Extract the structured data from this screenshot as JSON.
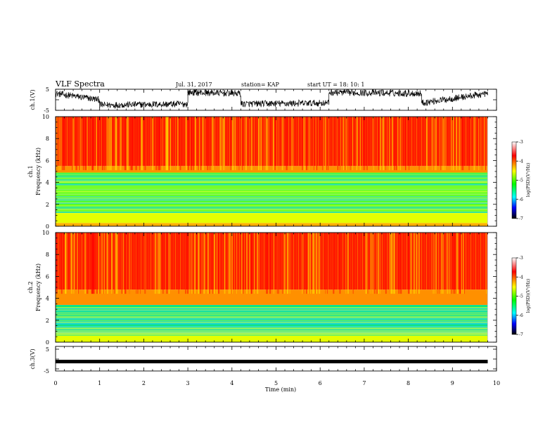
{
  "header": {
    "title": "VLF Spectra",
    "date": "Jul. 31, 2017",
    "station": "station= KAP",
    "start": "start UT =   18: 10: 1"
  },
  "panels": {
    "ch1_wave_label": "ch.1(V)",
    "ch1_spec_label": "ch.1",
    "ch2_spec_label": "ch.2",
    "freq_label": "Frequency (kHz)",
    "ch3_wave_label": "ch.3(V)"
  },
  "colorbar": {
    "label": "log(PSD)(V²/Hz)",
    "ticks": [
      "-3",
      "-4",
      "-5",
      "-6",
      "-7"
    ],
    "colors": [
      "#ffffff",
      "#ff0000",
      "#ffff00",
      "#00ff00",
      "#00ffff",
      "#0000ff",
      "#000000"
    ]
  },
  "chart_data": [
    {
      "type": "line",
      "name": "ch1-waveform",
      "ylabel": "ch.1(V)",
      "ylim": [
        -5,
        5
      ],
      "yticks": [
        "5",
        "-5"
      ],
      "xlim": [
        0,
        10
      ],
      "description_level": "fluctuating between approx -2 and 4 V",
      "segments": [
        {
          "x": [
            0.0,
            1.0
          ],
          "y": [
            3.0,
            0.0
          ]
        },
        {
          "x": [
            1.0,
            3.0
          ],
          "y": [
            -2.5,
            -2.0
          ]
        },
        {
          "x": [
            3.0,
            4.2
          ],
          "y": [
            3.5,
            3.0
          ]
        },
        {
          "x": [
            4.2,
            6.2
          ],
          "y": [
            -2.0,
            -1.5
          ]
        },
        {
          "x": [
            6.2,
            8.3
          ],
          "y": [
            3.5,
            3.0
          ]
        },
        {
          "x": [
            8.3,
            9.8
          ],
          "y": [
            -1.5,
            3.0
          ]
        }
      ]
    },
    {
      "type": "heatmap",
      "name": "ch1-spectrogram",
      "ylabel": "Frequency (kHz)",
      "ylim": [
        0,
        10
      ],
      "yticks": [
        "0",
        "2",
        "4",
        "6",
        "8",
        "10"
      ],
      "xlim": [
        0,
        9.8
      ],
      "bands": [
        {
          "fmin": 0.0,
          "fmax": 0.3,
          "level": "mixed"
        },
        {
          "fmin": 0.3,
          "fmax": 1.2,
          "level": "-5"
        },
        {
          "fmin": 1.2,
          "fmax": 4.9,
          "level": "-5.5"
        },
        {
          "fmin": 4.9,
          "fmax": 5.5,
          "level": "-4.5"
        },
        {
          "fmin": 5.5,
          "fmax": 10.0,
          "level": "-3.8"
        }
      ]
    },
    {
      "type": "heatmap",
      "name": "ch2-spectrogram",
      "ylabel": "Frequency (kHz)",
      "ylim": [
        0,
        10
      ],
      "yticks": [
        "0",
        "2",
        "4",
        "6",
        "8",
        "10"
      ],
      "xlim": [
        0,
        9.8
      ],
      "bands": [
        {
          "fmin": 0.0,
          "fmax": 0.6,
          "level": "-4.8"
        },
        {
          "fmin": 0.6,
          "fmax": 3.4,
          "level": "-5.6"
        },
        {
          "fmin": 3.4,
          "fmax": 4.8,
          "level": "-4.5"
        },
        {
          "fmin": 4.8,
          "fmax": 10.0,
          "level": "-3.8"
        }
      ]
    },
    {
      "type": "line",
      "name": "ch3-waveform",
      "ylabel": "ch.3(V)",
      "ylim": [
        -5,
        5
      ],
      "yticks": [
        "5",
        "-5"
      ],
      "xlabel": "Time (min)",
      "xlim": [
        0,
        10
      ],
      "xticks": [
        "0",
        "1",
        "2",
        "3",
        "4",
        "5",
        "6",
        "7",
        "8",
        "9",
        "10"
      ],
      "x": [
        0,
        9.8
      ],
      "y": [
        -1.3,
        -1.3
      ]
    }
  ]
}
